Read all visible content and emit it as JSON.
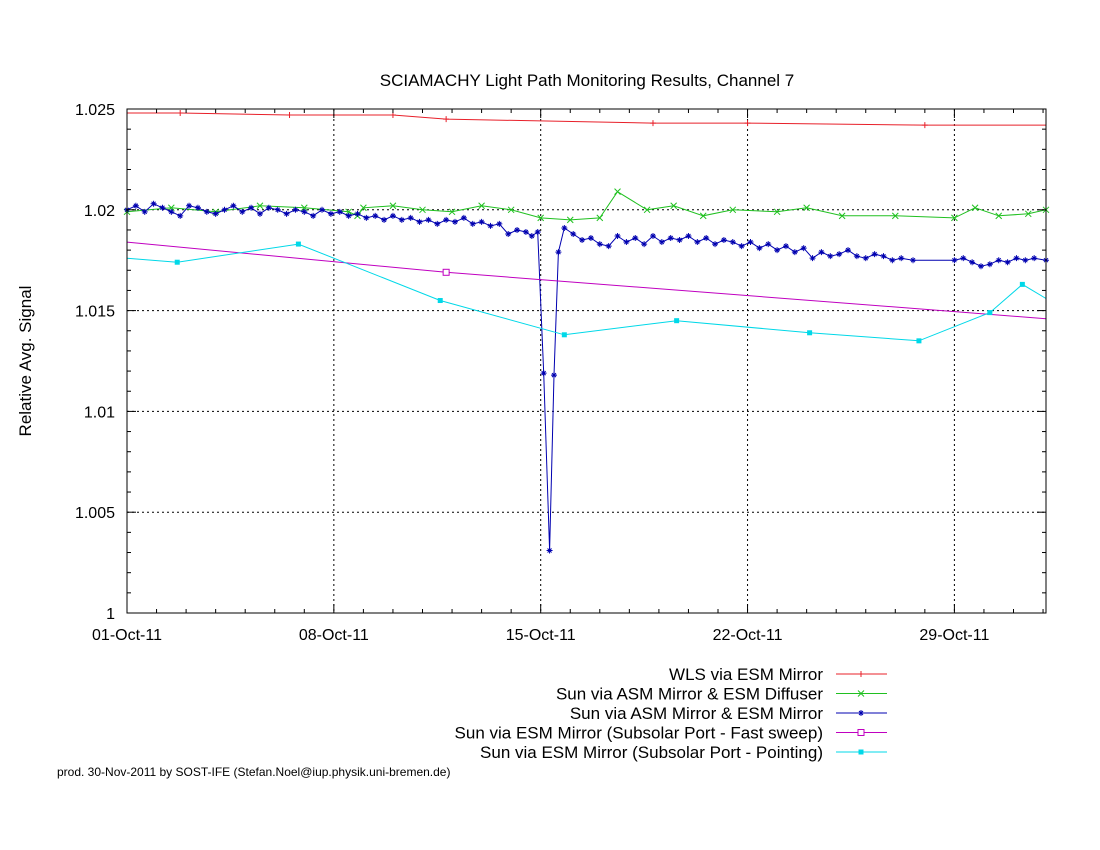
{
  "chart_data": {
    "type": "line",
    "title": "SCIAMACHY Light Path Monitoring Results, Channel 7",
    "xlabel": "",
    "ylabel": "Relative Avg. Signal",
    "x_unit": "days after 01-Oct-11",
    "xlim": [
      0,
      31.1
    ],
    "ylim": [
      1.0,
      1.025
    ],
    "x_ticks": [
      {
        "x": 0,
        "label": "01-Oct-11"
      },
      {
        "x": 7,
        "label": "08-Oct-11"
      },
      {
        "x": 14,
        "label": "15-Oct-11"
      },
      {
        "x": 21,
        "label": "22-Oct-11"
      },
      {
        "x": 28,
        "label": "29-Oct-11"
      }
    ],
    "y_ticks": [
      {
        "y": 1.0,
        "label": "1"
      },
      {
        "y": 1.005,
        "label": "1.005"
      },
      {
        "y": 1.01,
        "label": "1.01"
      },
      {
        "y": 1.015,
        "label": "1.015"
      },
      {
        "y": 1.02,
        "label": "1.02"
      },
      {
        "y": 1.025,
        "label": "1.025"
      }
    ],
    "grid": true,
    "legend_position": "below plot, right-aligned",
    "series": [
      {
        "name": "WLS via ESM Mirror",
        "color": "#e8202a",
        "marker": "plus",
        "points": [
          [
            0,
            1.0248
          ],
          [
            1.8,
            1.0248
          ],
          [
            5.5,
            1.0247
          ],
          [
            9.0,
            1.0247
          ],
          [
            10.8,
            1.0245
          ],
          [
            17.8,
            1.0243
          ],
          [
            21.0,
            1.0243
          ],
          [
            27.0,
            1.0242
          ],
          [
            31.1,
            1.0242
          ]
        ]
      },
      {
        "name": "Sun via ASM Mirror & ESM Diffuser",
        "color": "#20c020",
        "marker": "x",
        "points": [
          [
            0,
            1.0199
          ],
          [
            1.5,
            1.0201
          ],
          [
            3.0,
            1.0199
          ],
          [
            4.5,
            1.0202
          ],
          [
            6.0,
            1.0201
          ],
          [
            7.5,
            1.0199
          ],
          [
            7.8,
            1.0197
          ],
          [
            8.0,
            1.0201
          ],
          [
            9.0,
            1.0202
          ],
          [
            10.0,
            1.02
          ],
          [
            11.0,
            1.0199
          ],
          [
            12.0,
            1.0202
          ],
          [
            13.0,
            1.02
          ],
          [
            14.0,
            1.0196
          ],
          [
            15.0,
            1.0195
          ],
          [
            16.0,
            1.0196
          ],
          [
            16.6,
            1.0209
          ],
          [
            17.6,
            1.02
          ],
          [
            18.5,
            1.0202
          ],
          [
            19.5,
            1.0197
          ],
          [
            20.5,
            1.02
          ],
          [
            22.0,
            1.0199
          ],
          [
            23.0,
            1.0201
          ],
          [
            24.2,
            1.0197
          ],
          [
            26.0,
            1.0197
          ],
          [
            28.0,
            1.0196
          ],
          [
            28.7,
            1.0201
          ],
          [
            29.5,
            1.0197
          ],
          [
            30.5,
            1.0198
          ],
          [
            31.1,
            1.02
          ]
        ]
      },
      {
        "name": "Sun via ASM Mirror & ESM Mirror",
        "color": "#0000b0",
        "marker": "star",
        "points": [
          [
            0,
            1.02
          ],
          [
            0.3,
            1.0202
          ],
          [
            0.6,
            1.0199
          ],
          [
            0.9,
            1.0203
          ],
          [
            1.2,
            1.0201
          ],
          [
            1.5,
            1.0199
          ],
          [
            1.8,
            1.0197
          ],
          [
            2.1,
            1.0202
          ],
          [
            2.4,
            1.0201
          ],
          [
            2.7,
            1.0199
          ],
          [
            3.0,
            1.0198
          ],
          [
            3.3,
            1.02
          ],
          [
            3.6,
            1.0202
          ],
          [
            3.9,
            1.0199
          ],
          [
            4.2,
            1.0201
          ],
          [
            4.5,
            1.0198
          ],
          [
            4.8,
            1.0201
          ],
          [
            5.1,
            1.02
          ],
          [
            5.4,
            1.0198
          ],
          [
            5.7,
            1.02
          ],
          [
            6.0,
            1.0199
          ],
          [
            6.3,
            1.0197
          ],
          [
            6.6,
            1.02
          ],
          [
            6.9,
            1.0198
          ],
          [
            7.2,
            1.0199
          ],
          [
            7.5,
            1.0197
          ],
          [
            7.8,
            1.0198
          ],
          [
            8.1,
            1.0196
          ],
          [
            8.4,
            1.0197
          ],
          [
            8.7,
            1.0195
          ],
          [
            9.0,
            1.0197
          ],
          [
            9.3,
            1.0195
          ],
          [
            9.6,
            1.0196
          ],
          [
            9.9,
            1.0194
          ],
          [
            10.2,
            1.0195
          ],
          [
            10.5,
            1.0193
          ],
          [
            10.8,
            1.0195
          ],
          [
            11.1,
            1.0194
          ],
          [
            11.4,
            1.0196
          ],
          [
            11.7,
            1.0193
          ],
          [
            12.0,
            1.0194
          ],
          [
            12.3,
            1.0192
          ],
          [
            12.6,
            1.0193
          ],
          [
            12.9,
            1.0188
          ],
          [
            13.2,
            1.019
          ],
          [
            13.5,
            1.0189
          ],
          [
            13.7,
            1.0187
          ],
          [
            13.9,
            1.0189
          ],
          [
            14.1,
            1.0119
          ],
          [
            14.3,
            1.0031
          ],
          [
            14.45,
            1.0118
          ],
          [
            14.6,
            1.0179
          ],
          [
            14.8,
            1.0191
          ],
          [
            15.1,
            1.0188
          ],
          [
            15.4,
            1.0185
          ],
          [
            15.7,
            1.0186
          ],
          [
            16.0,
            1.0183
          ],
          [
            16.3,
            1.0182
          ],
          [
            16.6,
            1.0187
          ],
          [
            16.9,
            1.0184
          ],
          [
            17.2,
            1.0186
          ],
          [
            17.5,
            1.0183
          ],
          [
            17.8,
            1.0187
          ],
          [
            18.1,
            1.0184
          ],
          [
            18.4,
            1.0186
          ],
          [
            18.7,
            1.0185
          ],
          [
            19.0,
            1.0187
          ],
          [
            19.3,
            1.0184
          ],
          [
            19.6,
            1.0186
          ],
          [
            19.9,
            1.0183
          ],
          [
            20.2,
            1.0185
          ],
          [
            20.5,
            1.0184
          ],
          [
            20.8,
            1.0182
          ],
          [
            21.1,
            1.0184
          ],
          [
            21.4,
            1.0181
          ],
          [
            21.7,
            1.0183
          ],
          [
            22.0,
            1.018
          ],
          [
            22.3,
            1.0182
          ],
          [
            22.6,
            1.0179
          ],
          [
            22.9,
            1.0181
          ],
          [
            23.2,
            1.0176
          ],
          [
            23.5,
            1.0179
          ],
          [
            23.8,
            1.0177
          ],
          [
            24.1,
            1.0178
          ],
          [
            24.4,
            1.018
          ],
          [
            24.7,
            1.0177
          ],
          [
            25.0,
            1.0176
          ],
          [
            25.3,
            1.0178
          ],
          [
            25.6,
            1.0177
          ],
          [
            25.9,
            1.0175
          ],
          [
            26.2,
            1.0176
          ],
          [
            26.6,
            1.0175
          ],
          [
            28.0,
            1.0175
          ],
          [
            28.3,
            1.0176
          ],
          [
            28.6,
            1.0174
          ],
          [
            28.9,
            1.0172
          ],
          [
            29.2,
            1.0173
          ],
          [
            29.5,
            1.0175
          ],
          [
            29.8,
            1.0174
          ],
          [
            30.1,
            1.0176
          ],
          [
            30.4,
            1.0175
          ],
          [
            30.7,
            1.0176
          ],
          [
            31.1,
            1.0175
          ]
        ]
      },
      {
        "name": "Sun via ESM Mirror (Subsolar Port - Fast sweep)",
        "color": "#c000c0",
        "marker": "open-square",
        "points": [
          [
            0,
            1.0184
          ],
          [
            10.8,
            1.0169
          ],
          [
            31.1,
            1.0146
          ]
        ]
      },
      {
        "name": "Sun via ESM Mirror (Subsolar Port - Pointing)",
        "color": "#00d8e8",
        "marker": "filled-square",
        "points": [
          [
            0,
            1.0176
          ],
          [
            1.7,
            1.0174
          ],
          [
            5.8,
            1.0183
          ],
          [
            10.6,
            1.0155
          ],
          [
            14.8,
            1.0138
          ],
          [
            18.6,
            1.0145
          ],
          [
            23.1,
            1.0139
          ],
          [
            26.8,
            1.0135
          ],
          [
            29.2,
            1.0149
          ],
          [
            30.3,
            1.0163
          ],
          [
            31.1,
            1.0156
          ]
        ]
      }
    ]
  },
  "footer": {
    "credit": "prod. 30-Nov-2011 by SOST-IFE (Stefan.Noel@iup.physik.uni-bremen.de)"
  }
}
